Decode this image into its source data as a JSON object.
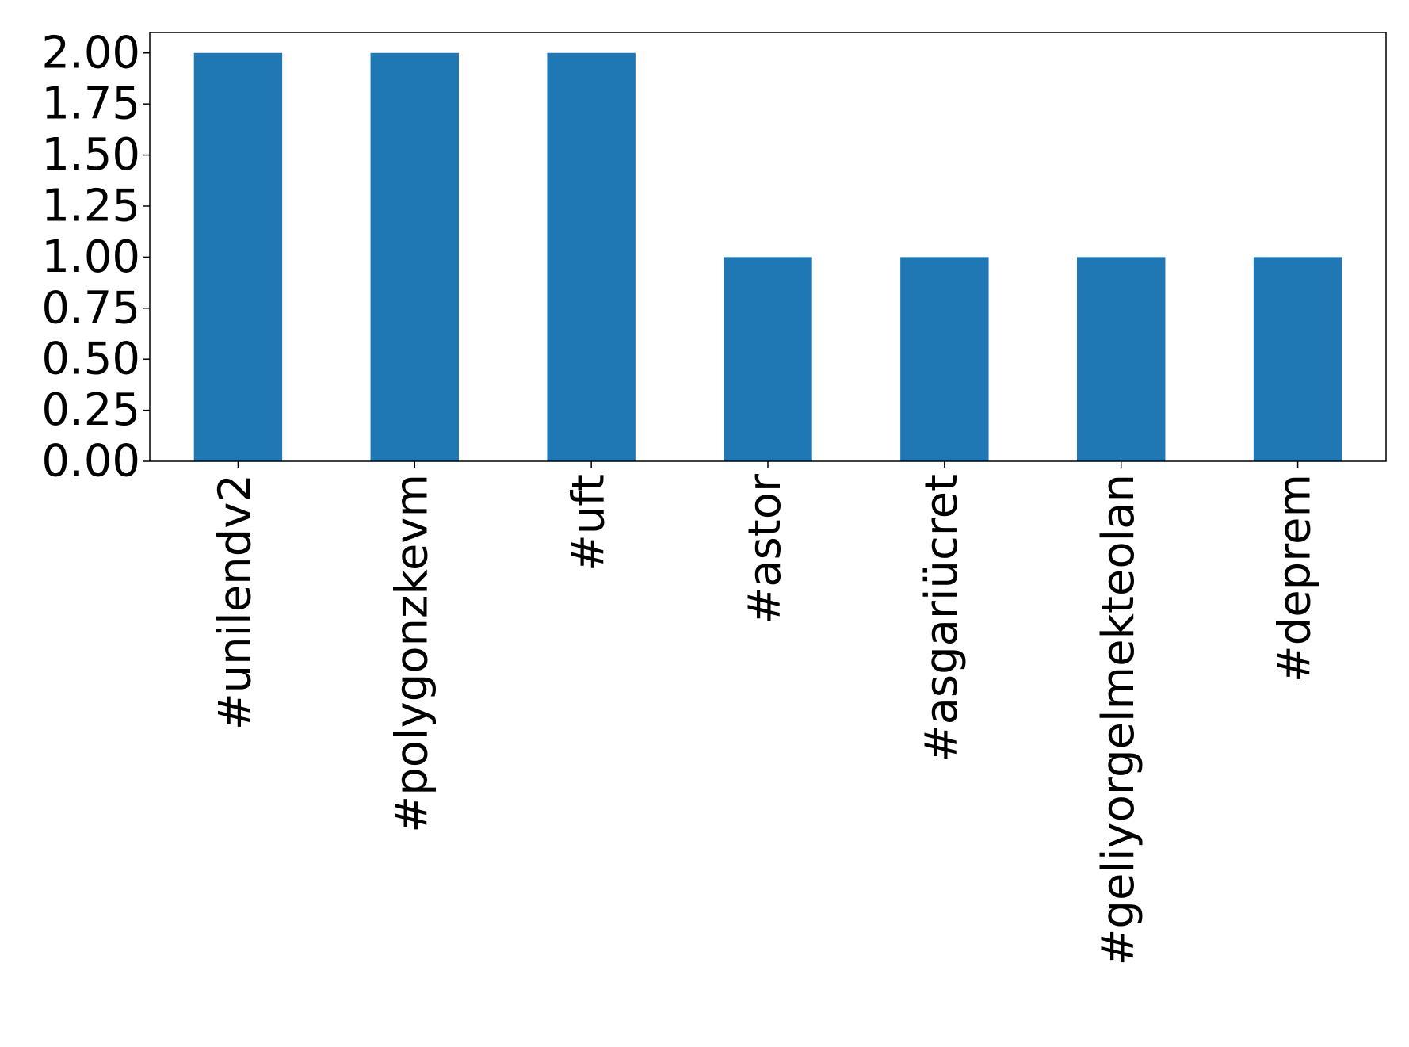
{
  "chart_data": {
    "type": "bar",
    "categories": [
      "#unilendv2",
      "#polygonzkevm",
      "#uft",
      "#astor",
      "#asgariücret",
      "#geliyorgelmekteolan",
      "#deprem"
    ],
    "values": [
      2,
      2,
      2,
      1,
      1,
      1,
      1
    ],
    "color": "#1f77b4",
    "ylim": [
      0,
      2.1
    ],
    "yticks": [
      {
        "value": 0,
        "label": "0.00"
      },
      {
        "value": 0.25,
        "label": "0.25"
      },
      {
        "value": 0.5,
        "label": "0.50"
      },
      {
        "value": 0.75,
        "label": "0.75"
      },
      {
        "value": 1,
        "label": "1.00"
      },
      {
        "value": 1.25,
        "label": "1.25"
      },
      {
        "value": 1.5,
        "label": "1.50"
      },
      {
        "value": 1.75,
        "label": "1.75"
      },
      {
        "value": 2,
        "label": "2.00"
      }
    ],
    "grid": false
  }
}
